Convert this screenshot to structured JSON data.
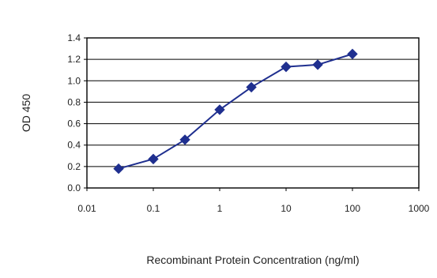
{
  "chart_data": {
    "type": "scatter",
    "xlabel": "Recombinant Protein Concentration (ng/ml)",
    "ylabel": "OD 450",
    "x_scale": "log",
    "xlim": [
      0.01,
      1000
    ],
    "ylim": [
      0.0,
      1.4
    ],
    "x_ticks": [
      "0.01",
      "0.1",
      "1",
      "10",
      "100",
      "1000"
    ],
    "y_ticks": [
      "0.0",
      "0.2",
      "0.4",
      "0.6",
      "0.8",
      "1.0",
      "1.2",
      "1.4"
    ],
    "grid": "horizontal",
    "legend": "none",
    "series": [
      {
        "x": [
          0.03,
          0.1,
          0.3,
          1,
          3,
          10,
          30,
          100
        ],
        "y": [
          0.18,
          0.27,
          0.45,
          0.73,
          0.94,
          1.13,
          1.15,
          1.25
        ],
        "color": "#1f2f8f",
        "marker": "diamond"
      }
    ]
  }
}
